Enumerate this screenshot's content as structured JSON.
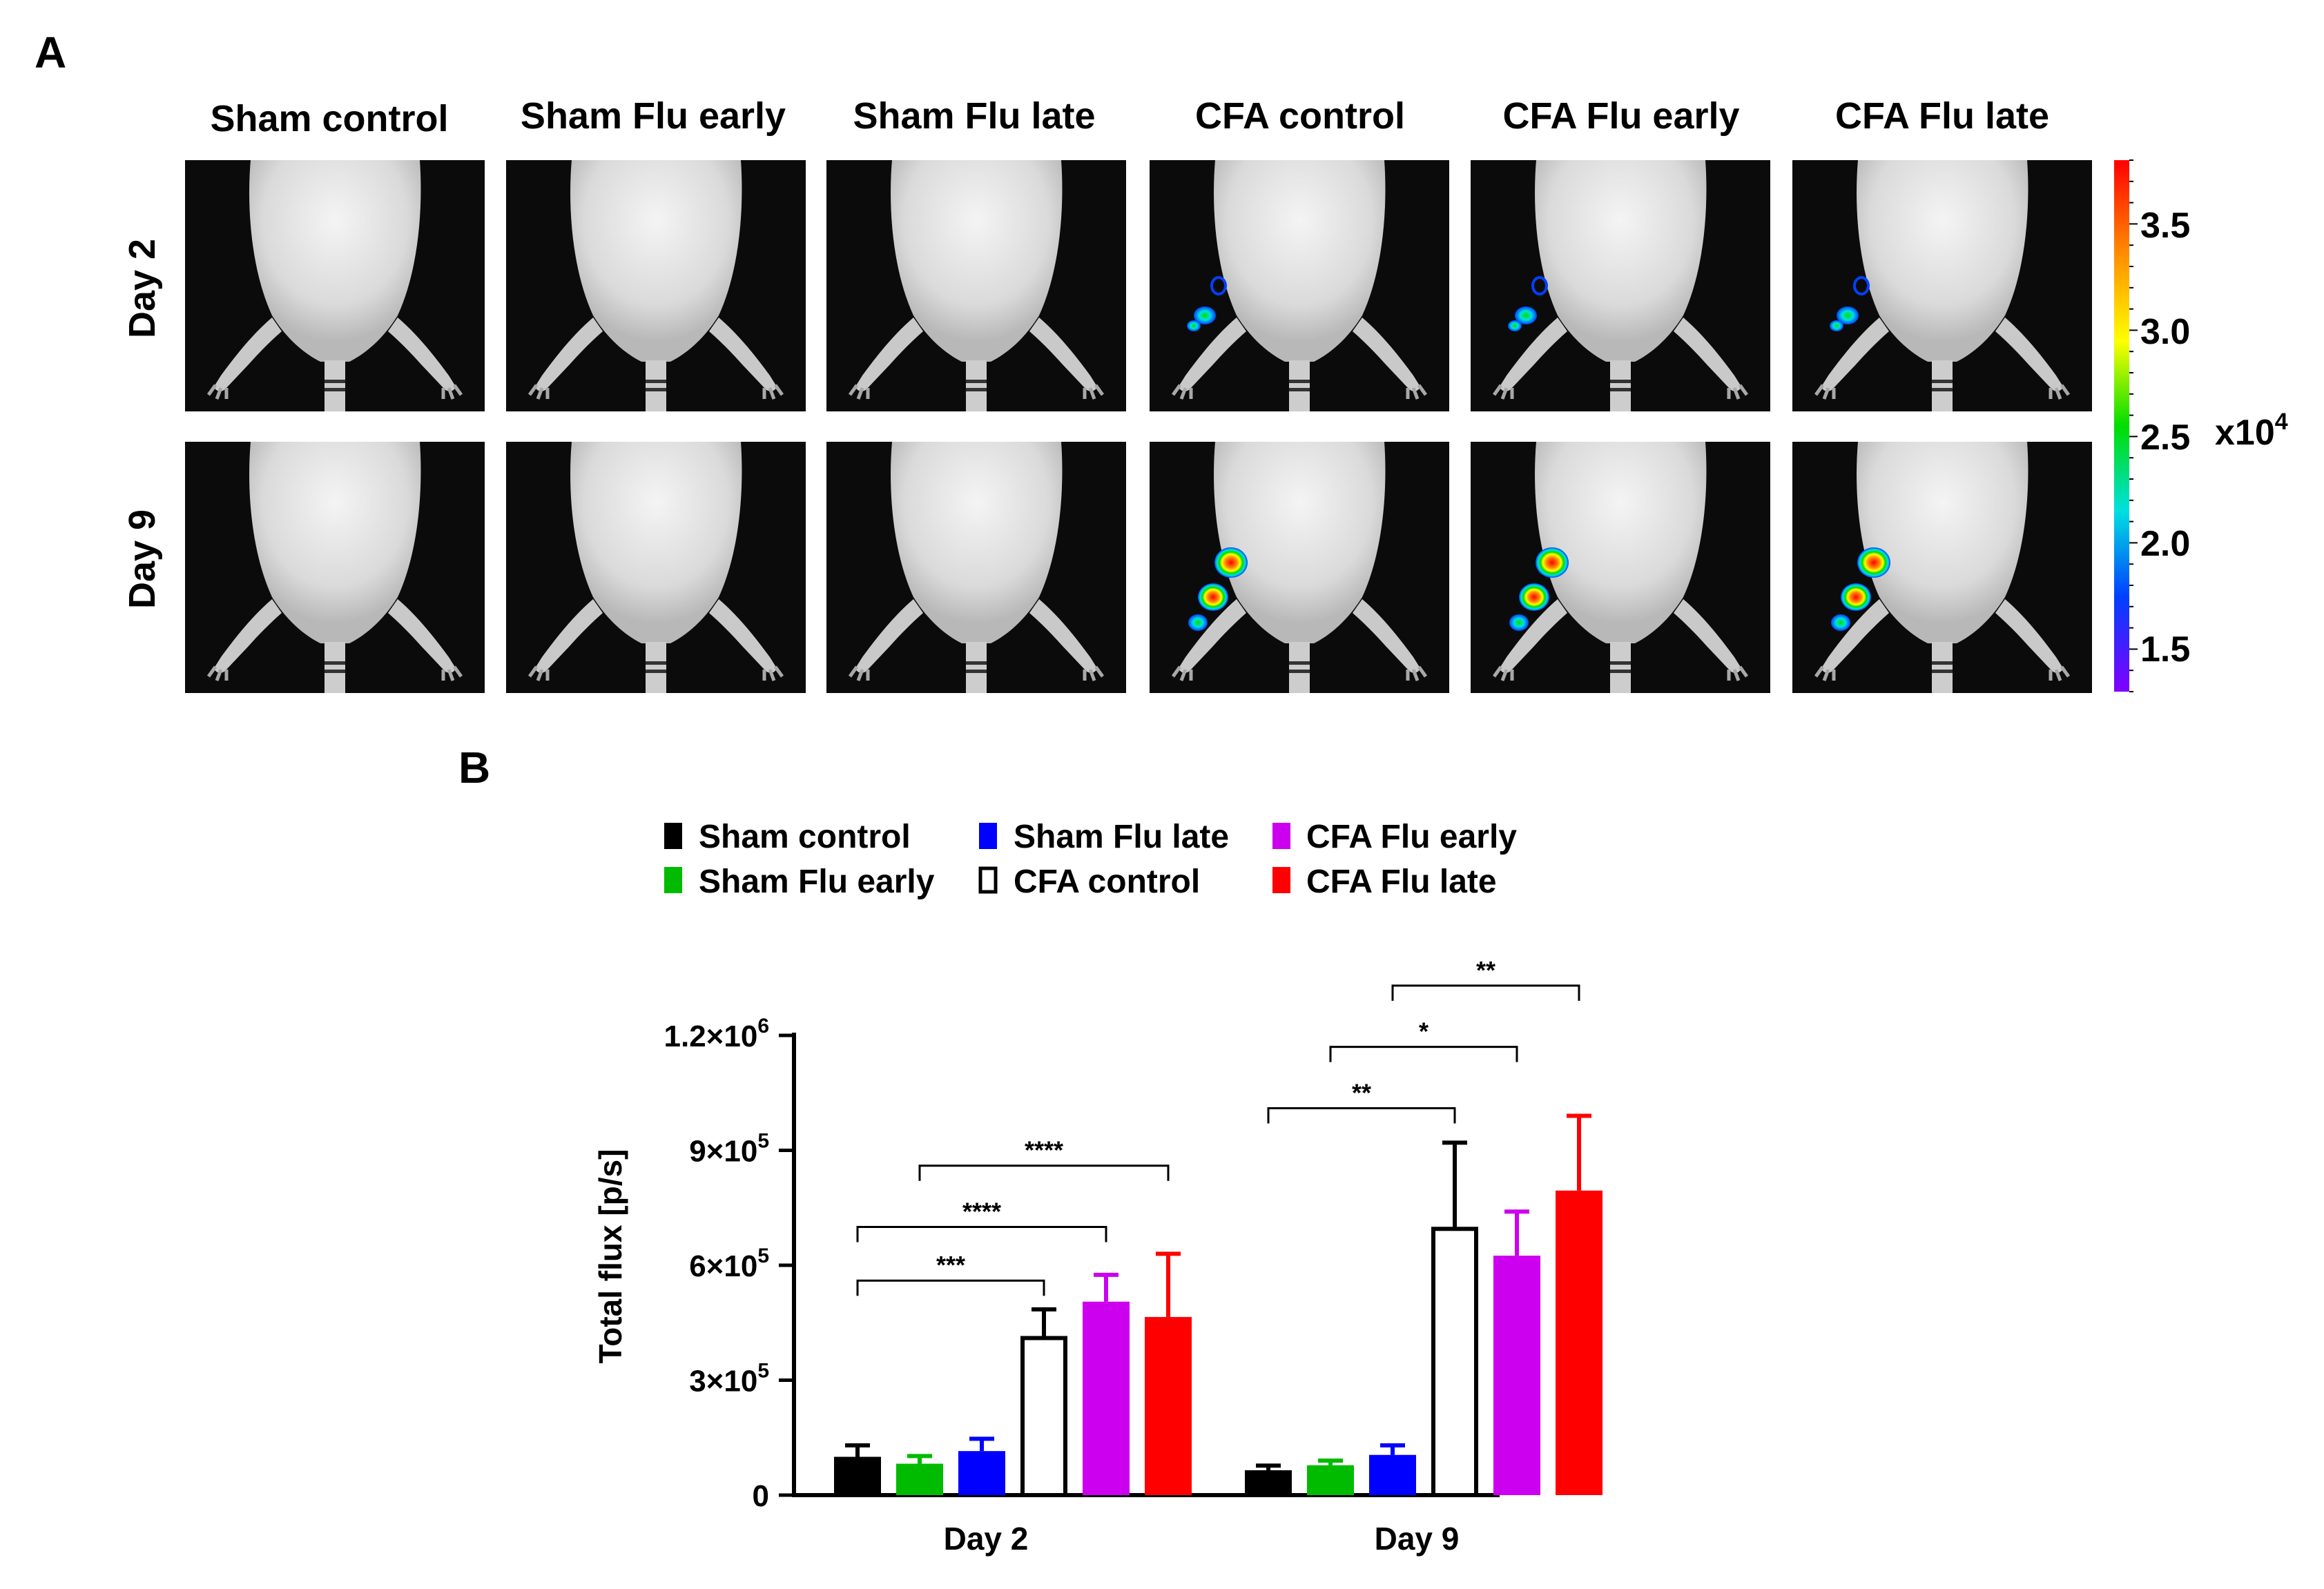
{
  "panel_a": {
    "label": "A",
    "columns": [
      "Sham control",
      "Sham Flu early",
      "Sham Flu late",
      "CFA control",
      "CFA Flu early",
      "CFA Flu late"
    ],
    "rows": [
      "Day 2",
      "Day 9"
    ],
    "colorbar": {
      "ticks": [
        "3.5",
        "3.0",
        "2.5",
        "2.0",
        "1.5"
      ],
      "tick_values": [
        3.5,
        3.0,
        2.5,
        2.0,
        1.5
      ],
      "range": [
        1.3,
        3.8
      ],
      "unit_base": "x10",
      "unit_exp": "4",
      "colors": [
        "#ff0000",
        "#ff8800",
        "#ffff00",
        "#00dd00",
        "#00e0e0",
        "#0040ff",
        "#8000ff"
      ]
    },
    "signals": [
      [
        0,
        0,
        0,
        1,
        1,
        1
      ],
      [
        0,
        0,
        0,
        2,
        2,
        2
      ]
    ]
  },
  "panel_b": {
    "label": "B",
    "legend": [
      {
        "name": "Sham control",
        "color": "#000000",
        "filled": true
      },
      {
        "name": "Sham Flu late",
        "color": "#0000ff",
        "filled": true
      },
      {
        "name": "CFA Flu early",
        "color": "#cc00ee",
        "filled": true
      },
      {
        "name": "Sham Flu early",
        "color": "#00bb00",
        "filled": true
      },
      {
        "name": "CFA control",
        "color": "#000000",
        "filled": false
      },
      {
        "name": "CFA Flu late",
        "color": "#ff0000",
        "filled": true
      }
    ]
  },
  "chart_data": {
    "type": "bar",
    "title": "",
    "xlabel": "",
    "ylabel": "Total flux [p/s]",
    "categories": [
      "Day 2",
      "Day 9"
    ],
    "ylim": [
      0,
      1200000
    ],
    "yticks": [
      {
        "value": 0,
        "label": "0",
        "exp": ""
      },
      {
        "value": 300000,
        "label": "3×10",
        "exp": "5"
      },
      {
        "value": 600000,
        "label": "6×10",
        "exp": "5"
      },
      {
        "value": 900000,
        "label": "9×10",
        "exp": "5"
      },
      {
        "value": 1200000,
        "label": "1.2×10",
        "exp": "6"
      }
    ],
    "series": [
      {
        "name": "Sham control",
        "color": "#000000",
        "filled": true,
        "values": [
          100000,
          65000
        ],
        "errors": [
          30000,
          12000
        ]
      },
      {
        "name": "Sham Flu early",
        "color": "#00bb00",
        "filled": true,
        "values": [
          82000,
          78000
        ],
        "errors": [
          20000,
          12000
        ]
      },
      {
        "name": "Sham Flu late",
        "color": "#0000ff",
        "filled": true,
        "values": [
          115000,
          105000
        ],
        "errors": [
          32000,
          25000
        ]
      },
      {
        "name": "CFA control",
        "color": "#000000",
        "filled": false,
        "values": [
          410000,
          695000
        ],
        "errors": [
          75000,
          225000
        ]
      },
      {
        "name": "CFA Flu early",
        "color": "#cc00ee",
        "filled": true,
        "values": [
          505000,
          625000
        ],
        "errors": [
          70000,
          115000
        ]
      },
      {
        "name": "CFA Flu late",
        "color": "#ff0000",
        "filled": true,
        "values": [
          465000,
          795000
        ],
        "errors": [
          165000,
          195000
        ]
      }
    ],
    "significance": [
      {
        "label": "***",
        "category": 0,
        "from": 0,
        "to": 3,
        "y": 560000
      },
      {
        "label": "****",
        "category": 0,
        "from": 0,
        "to": 4,
        "y": 700000
      },
      {
        "label": "****",
        "category": 0,
        "from": 1,
        "to": 5,
        "y": 860000
      },
      {
        "label": "**",
        "category": 1,
        "from": 0,
        "to": 3,
        "y": 1010000
      },
      {
        "label": "*",
        "category": 1,
        "from": 1,
        "to": 4,
        "y": 1170000
      },
      {
        "label": "**",
        "category": 1,
        "from": 2,
        "to": 5,
        "y": 1330000
      }
    ]
  }
}
